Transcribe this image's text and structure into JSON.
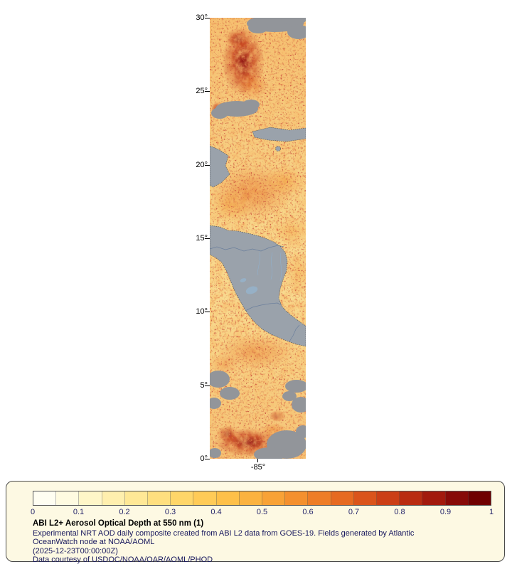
{
  "figure": {
    "map": {
      "y_ticks": [
        "30°",
        "25°",
        "20°",
        "15°",
        "10°",
        "5°",
        "0°"
      ],
      "x_ticks": [
        "-85°"
      ],
      "colors": {
        "base": "#f8da8f",
        "land": "#9aa2ab",
        "cloud": "#92959a",
        "lake": "#96b0c6",
        "border": "#6b7f9c",
        "river": "#8fb3d4",
        "heavy_aerosol": "#8c0f0f"
      }
    },
    "legend": {
      "title": "ABI L2+ Aerosol Optical Depth at 550 nm (1)",
      "desc": [
        "Experimental NRT AOD daily composite created from ABI L2 data from GOES-19. Fields generated by Atlantic",
        "OceanWatch node at NOAA/AOML",
        "(2025-12-23T00:00:00Z)",
        "Data courtesy of USDOC/NOAA/OAR/AOML/PHOD"
      ],
      "colorbar": {
        "ticks": [
          "0",
          "0.1",
          "0.2",
          "0.3",
          "0.4",
          "0.5",
          "0.6",
          "0.7",
          "0.8",
          "0.9",
          "1"
        ],
        "colors": [
          "#fffef2",
          "#fffbe1",
          "#fff6c8",
          "#ffefae",
          "#ffe896",
          "#ffdf7f",
          "#ffd669",
          "#ffcb57",
          "#fec049",
          "#fbb23f",
          "#f8a236",
          "#f4902e",
          "#ee7d27",
          "#e66a21",
          "#da541b",
          "#cb3f16",
          "#b92c11",
          "#a21a0d",
          "#870b08",
          "#6f0000"
        ]
      }
    }
  }
}
